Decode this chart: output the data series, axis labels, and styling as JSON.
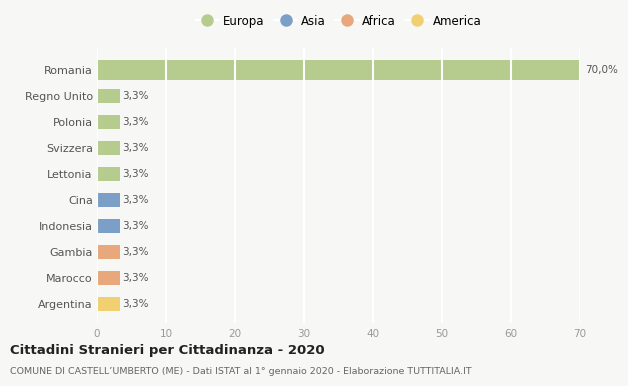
{
  "categories": [
    "Romania",
    "Regno Unito",
    "Polonia",
    "Svizzera",
    "Lettonia",
    "Cina",
    "Indonesia",
    "Gambia",
    "Marocco",
    "Argentina"
  ],
  "values": [
    70.0,
    3.3,
    3.3,
    3.3,
    3.3,
    3.3,
    3.3,
    3.3,
    3.3,
    3.3
  ],
  "colors": [
    "#b5cc8e",
    "#b5cc8e",
    "#b5cc8e",
    "#b5cc8e",
    "#b5cc8e",
    "#7b9fc7",
    "#7b9fc7",
    "#e8a87c",
    "#e8a87c",
    "#f0d070"
  ],
  "continent_colors": {
    "Europa": "#b5cc8e",
    "Asia": "#7b9fc7",
    "Africa": "#e8a87c",
    "America": "#f0d070"
  },
  "labels": [
    "70,0%",
    "3,3%",
    "3,3%",
    "3,3%",
    "3,3%",
    "3,3%",
    "3,3%",
    "3,3%",
    "3,3%",
    "3,3%"
  ],
  "xlim": [
    0,
    70
  ],
  "xticks": [
    0,
    10,
    20,
    30,
    40,
    50,
    60,
    70
  ],
  "title": "Cittadini Stranieri per Cittadinanza - 2020",
  "subtitle": "COMUNE DI CASTELL’UMBERTO (ME) - Dati ISTAT al 1° gennaio 2020 - Elaborazione TUTTITALIA.IT",
  "legend_labels": [
    "Europa",
    "Asia",
    "Africa",
    "America"
  ],
  "background_color": "#f7f7f5",
  "plot_bg_color": "#f7f7f5",
  "grid_color": "#ffffff",
  "bar_height": 0.55,
  "romania_bar_height": 0.75
}
